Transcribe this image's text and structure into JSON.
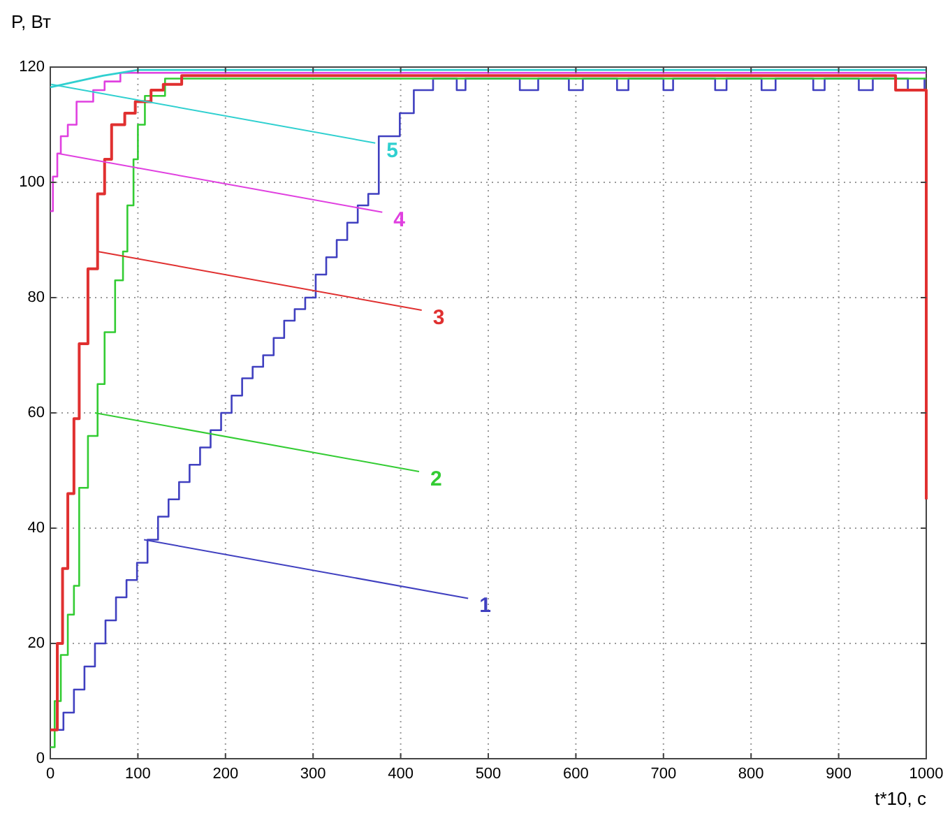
{
  "chart_data": {
    "type": "step",
    "xlabel": "t*10, с",
    "ylabel": "P, Вт",
    "xlim": [
      0,
      1000
    ],
    "ylim": [
      0,
      120
    ],
    "xticks": [
      0,
      100,
      200,
      300,
      400,
      500,
      600,
      700,
      800,
      900,
      1000
    ],
    "yticks": [
      0,
      20,
      40,
      60,
      80,
      100,
      120
    ],
    "grid": true,
    "line_style": "solid",
    "series": [
      {
        "color": "#4040c0",
        "x": [
          0,
          15,
          27,
          39,
          51,
          63,
          75,
          87,
          99,
          111,
          123,
          135,
          147,
          159,
          171,
          183,
          195,
          207,
          219,
          231,
          243,
          255,
          267,
          279,
          291,
          303,
          315,
          327,
          339,
          351,
          363,
          375,
          399,
          415,
          437,
          464,
          474,
          536,
          557,
          592,
          608,
          647,
          660,
          700,
          711,
          759,
          772,
          812,
          828,
          871,
          884,
          923,
          939,
          979,
          998,
          1000
        ],
        "values": [
          5,
          8,
          12,
          16,
          20,
          24,
          28,
          31,
          34,
          38,
          42,
          45,
          48,
          51,
          54,
          57,
          60,
          63,
          66,
          68,
          70,
          73,
          76,
          78,
          80,
          84,
          87,
          90,
          93,
          96,
          98,
          108,
          112,
          116,
          118,
          116,
          118,
          116,
          118,
          116,
          118,
          116,
          118,
          116,
          118,
          116,
          118,
          116,
          118,
          116,
          118,
          116,
          118,
          116,
          118,
          118
        ]
      },
      {
        "color": "#33cc33",
        "x": [
          0,
          5,
          12,
          20,
          27,
          33,
          43,
          54,
          62,
          74,
          83,
          88,
          95,
          100,
          108,
          131,
          1000
        ],
        "values": [
          2,
          10,
          18,
          25,
          30,
          47,
          56,
          65,
          74,
          83,
          88,
          96,
          104,
          110,
          115,
          118,
          118
        ]
      },
      {
        "color": "#e03030",
        "x": [
          0,
          8,
          14,
          20,
          27,
          33,
          43,
          54,
          62,
          70,
          85,
          97,
          115,
          129,
          150,
          965,
          1000
        ],
        "values": [
          5,
          20,
          33,
          46,
          59,
          72,
          85,
          98,
          104,
          110,
          112,
          114,
          116,
          117,
          118.5,
          116,
          45
        ]
      },
      {
        "color": "#e040e0",
        "x": [
          0,
          3,
          8,
          12,
          20,
          30,
          49,
          62,
          80,
          1000
        ],
        "values": [
          95,
          101,
          105,
          108,
          110,
          114,
          116,
          117.5,
          119,
          119
        ]
      },
      {
        "color": "#30d0d0",
        "type": "line",
        "x": [
          0,
          30,
          60,
          100,
          1000
        ],
        "values": [
          116.5,
          117.5,
          118.5,
          119.5,
          119.5
        ]
      }
    ],
    "annotations": [
      {
        "text": "1",
        "x": 107,
        "y": 38
      },
      {
        "text": "2",
        "x": 51,
        "y": 60
      },
      {
        "text": "3",
        "x": 54,
        "y": 88
      },
      {
        "text": "4",
        "x": 9,
        "y": 105
      },
      {
        "text": "5",
        "x": 1,
        "y": 117
      }
    ]
  }
}
